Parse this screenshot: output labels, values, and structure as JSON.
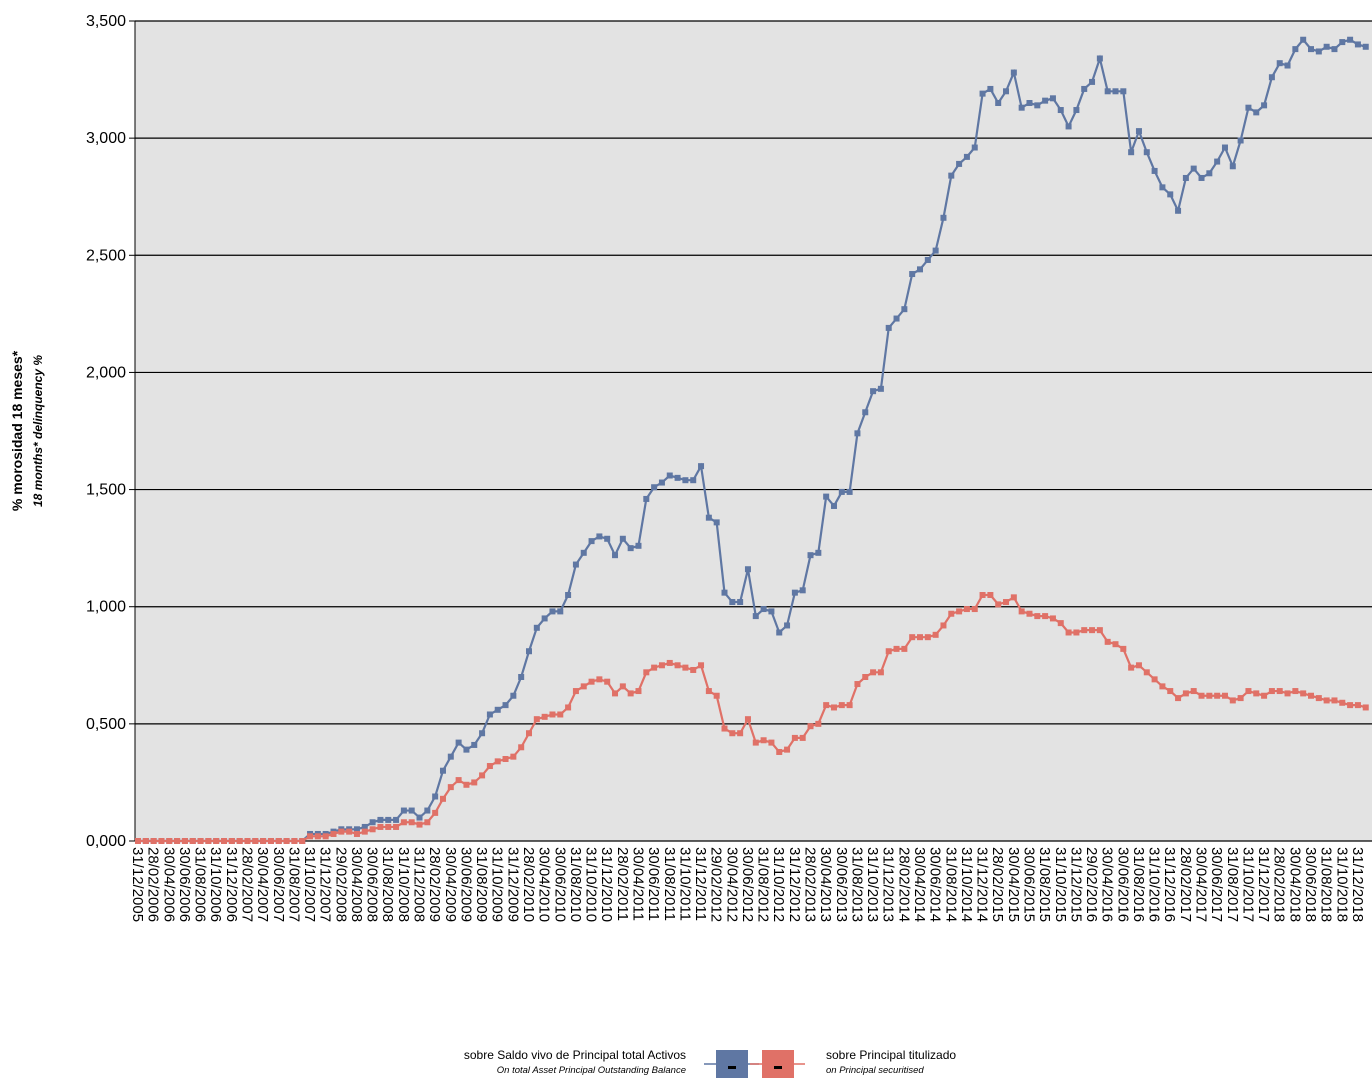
{
  "chart_data": {
    "type": "line",
    "y_label": "% morosidad 18 meses*",
    "y_label_en": "18 months* delinquency %",
    "ylim": [
      0,
      3.5
    ],
    "yticks": [
      {
        "value": 0,
        "label": "0,000"
      },
      {
        "value": 0.5,
        "label": "0,500"
      },
      {
        "value": 1,
        "label": "1,000"
      },
      {
        "value": 1.5,
        "label": "1,500"
      },
      {
        "value": 2,
        "label": "2,000"
      },
      {
        "value": 2.5,
        "label": "2,500"
      },
      {
        "value": 3,
        "label": "3,000"
      },
      {
        "value": 3.5,
        "label": "3,500"
      }
    ],
    "grid": true,
    "categories": [
      "31/12/2005",
      null,
      "28/02/2006",
      null,
      "30/04/2006",
      null,
      "30/06/2006",
      null,
      "31/08/2006",
      null,
      "31/10/2006",
      null,
      "31/12/2006",
      null,
      "28/02/2007",
      null,
      "30/04/2007",
      null,
      "30/06/2007",
      null,
      "31/08/2007",
      null,
      "31/10/2007",
      null,
      "31/12/2007",
      null,
      "29/02/2008",
      null,
      "30/04/2008",
      null,
      "30/06/2008",
      null,
      "31/08/2008",
      null,
      "31/10/2008",
      null,
      "31/12/2008",
      null,
      "28/02/2009",
      null,
      "30/04/2009",
      null,
      "30/06/2009",
      null,
      "31/08/2009",
      null,
      "31/10/2009",
      null,
      "31/12/2009",
      null,
      "28/02/2010",
      null,
      "30/04/2010",
      null,
      "30/06/2010",
      null,
      "31/08/2010",
      null,
      "31/10/2010",
      null,
      "31/12/2010",
      null,
      "28/02/2011",
      null,
      "30/04/2011",
      null,
      "30/06/2011",
      null,
      "31/08/2011",
      null,
      "31/10/2011",
      null,
      "31/12/2011",
      null,
      "29/02/2012",
      null,
      "30/04/2012",
      null,
      "30/06/2012",
      null,
      "31/08/2012",
      null,
      "31/10/2012",
      null,
      "31/12/2012",
      null,
      "28/02/2013",
      null,
      "30/04/2013",
      null,
      "30/06/2013",
      null,
      "31/08/2013",
      null,
      "31/10/2013",
      null,
      "31/12/2013",
      null,
      "28/02/2014",
      null,
      "30/04/2014",
      null,
      "30/06/2014",
      null,
      "31/08/2014",
      null,
      "31/10/2014",
      null,
      "31/12/2014",
      null,
      "28/02/2015",
      null,
      "30/04/2015",
      null,
      "30/06/2015",
      null,
      "31/08/2015",
      null,
      "31/10/2015",
      null,
      "31/12/2015",
      null,
      "29/02/2016",
      null,
      "30/04/2016",
      null,
      "30/06/2016",
      null,
      "31/08/2016",
      null,
      "31/10/2016",
      null,
      "31/12/2016",
      null,
      "28/02/2017",
      null,
      "30/04/2017",
      null,
      "30/06/2017",
      null,
      "31/08/2017",
      null,
      "31/10/2017",
      null,
      "31/12/2017",
      null,
      "28/02/2018",
      null,
      "30/04/2018",
      null,
      "30/06/2018",
      null,
      "31/08/2018",
      null,
      "31/10/2018",
      null,
      "31/12/2018",
      null
    ],
    "series": [
      {
        "name": "sobre Saldo vivo de Principal total Activos",
        "name_en": "On total Asset Principal Outstanding Balance",
        "color": "#5f77a3",
        "values": [
          0,
          0,
          0,
          0,
          0,
          0,
          0,
          0,
          0,
          0,
          0,
          0,
          0,
          0,
          0,
          0,
          0,
          0,
          0,
          0,
          0,
          0,
          0.03,
          0.03,
          0.03,
          0.04,
          0.05,
          0.05,
          0.05,
          0.06,
          0.08,
          0.09,
          0.09,
          0.09,
          0.13,
          0.13,
          0.1,
          0.13,
          0.19,
          0.3,
          0.36,
          0.42,
          0.39,
          0.41,
          0.46,
          0.54,
          0.56,
          0.58,
          0.62,
          0.7,
          0.81,
          0.91,
          0.95,
          0.98,
          0.98,
          1.05,
          1.18,
          1.23,
          1.28,
          1.3,
          1.29,
          1.22,
          1.29,
          1.25,
          1.26,
          1.46,
          1.51,
          1.53,
          1.56,
          1.55,
          1.54,
          1.54,
          1.6,
          1.38,
          1.36,
          1.06,
          1.02,
          1.02,
          1.16,
          0.96,
          0.99,
          0.98,
          0.89,
          0.92,
          1.06,
          1.07,
          1.22,
          1.23,
          1.47,
          1.43,
          1.49,
          1.49,
          1.74,
          1.83,
          1.92,
          1.93,
          2.19,
          2.23,
          2.27,
          2.42,
          2.44,
          2.48,
          2.52,
          2.66,
          2.84,
          2.89,
          2.92,
          2.96,
          3.19,
          3.21,
          3.15,
          3.2,
          3.28,
          3.13,
          3.15,
          3.14,
          3.16,
          3.17,
          3.12,
          3.05,
          3.12,
          3.21,
          3.24,
          3.34,
          3.2,
          3.2,
          3.2,
          2.94,
          3.03,
          2.94,
          2.86,
          2.79,
          2.76,
          2.69,
          2.83,
          2.87,
          2.83,
          2.85,
          2.9,
          2.96,
          2.88,
          2.99,
          3.13,
          3.11,
          3.14,
          3.26,
          3.32,
          3.31,
          3.38,
          3.42,
          3.38,
          3.37,
          3.39,
          3.38,
          3.41,
          3.42,
          3.4,
          3.39
        ]
      },
      {
        "name": "sobre Principal titulizado",
        "name_en": "on Principal securitised",
        "color": "#e07167",
        "values": [
          0,
          0,
          0,
          0,
          0,
          0,
          0,
          0,
          0,
          0,
          0,
          0,
          0,
          0,
          0,
          0,
          0,
          0,
          0,
          0,
          0,
          0,
          0.02,
          0.02,
          0.02,
          0.03,
          0.04,
          0.04,
          0.03,
          0.04,
          0.05,
          0.06,
          0.06,
          0.06,
          0.08,
          0.08,
          0.07,
          0.08,
          0.12,
          0.18,
          0.23,
          0.26,
          0.24,
          0.25,
          0.28,
          0.32,
          0.34,
          0.35,
          0.36,
          0.4,
          0.46,
          0.52,
          0.53,
          0.54,
          0.54,
          0.57,
          0.64,
          0.66,
          0.68,
          0.69,
          0.68,
          0.63,
          0.66,
          0.63,
          0.64,
          0.72,
          0.74,
          0.75,
          0.76,
          0.75,
          0.74,
          0.73,
          0.75,
          0.64,
          0.62,
          0.48,
          0.46,
          0.46,
          0.52,
          0.42,
          0.43,
          0.42,
          0.38,
          0.39,
          0.44,
          0.44,
          0.49,
          0.5,
          0.58,
          0.57,
          0.58,
          0.58,
          0.67,
          0.7,
          0.72,
          0.72,
          0.81,
          0.82,
          0.82,
          0.87,
          0.87,
          0.87,
          0.88,
          0.92,
          0.97,
          0.98,
          0.99,
          0.99,
          1.05,
          1.05,
          1.01,
          1.02,
          1.04,
          0.98,
          0.97,
          0.96,
          0.96,
          0.95,
          0.93,
          0.89,
          0.89,
          0.9,
          0.9,
          0.9,
          0.85,
          0.84,
          0.82,
          0.74,
          0.75,
          0.72,
          0.69,
          0.66,
          0.64,
          0.61,
          0.63,
          0.64,
          0.62,
          0.62,
          0.62,
          0.62,
          0.6,
          0.61,
          0.64,
          0.63,
          0.62,
          0.64,
          0.64,
          0.63,
          0.64,
          0.63,
          0.62,
          0.61,
          0.6,
          0.6,
          0.59,
          0.58,
          0.58,
          0.57
        ]
      }
    ]
  }
}
